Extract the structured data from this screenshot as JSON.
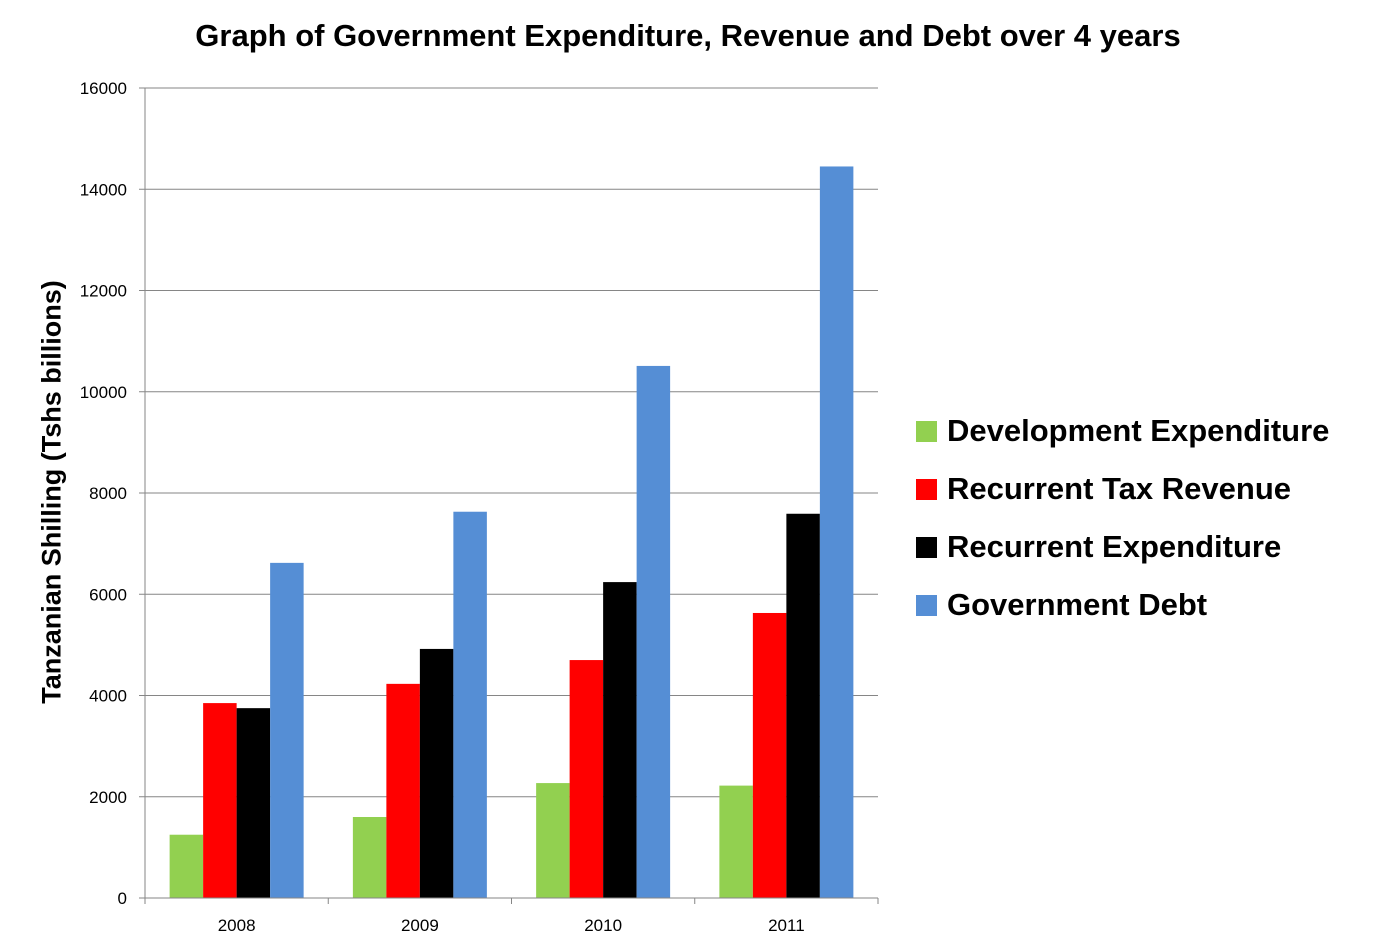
{
  "chart_data": {
    "type": "bar",
    "title": "Graph of Government Expenditure, Revenue and Debt over 4 years",
    "xlabel": "",
    "ylabel": "Tanzanian Shilling (Tshs billions)",
    "ylim": [
      0,
      16000
    ],
    "yticks": [
      "0",
      "2000",
      "4000",
      "6000",
      "8000",
      "10000",
      "12000",
      "14000",
      "16000"
    ],
    "categories": [
      "2008",
      "2009",
      "2010",
      "2011"
    ],
    "grid": true,
    "legend_position": "right",
    "series": [
      {
        "name": "Development Expenditure",
        "color": "#92d050",
        "values": [
          1250,
          1600,
          2270,
          2220
        ]
      },
      {
        "name": "Recurrent Tax Revenue",
        "color": "#ff0000",
        "values": [
          3850,
          4230,
          4700,
          5630
        ]
      },
      {
        "name": "Recurrent Expenditure",
        "color": "#000000",
        "values": [
          3750,
          4920,
          6240,
          7590
        ]
      },
      {
        "name": "Government Debt",
        "color": "#558ed5",
        "values": [
          6620,
          7630,
          10510,
          14450
        ]
      }
    ]
  }
}
